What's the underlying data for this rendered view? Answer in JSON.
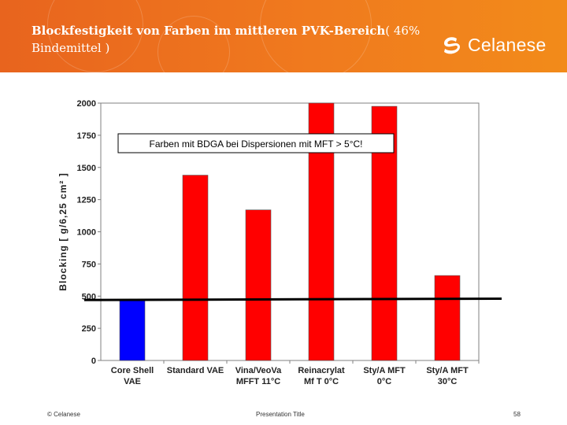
{
  "slide": {
    "title_bold": "Blockfestigkeit von Farben im mittleren PVK-Bereich",
    "title_rest": "( 46% Bindemittel )",
    "logo": "Celanese",
    "footer_left": "© Celanese",
    "footer_center": "Presentation Title",
    "page_number": "58"
  },
  "colors": {
    "header": "#f07a1e",
    "bar_highlight": "#0000ff",
    "bar_default": "#ff0000",
    "reference_line": "#000000"
  },
  "chart_data": {
    "type": "bar",
    "categories": [
      [
        "Core Shell",
        "VAE"
      ],
      [
        "Standard VAE"
      ],
      [
        "Vina/VeoVa",
        "MFFT 11°C"
      ],
      [
        "Reinacrylat",
        "Mf T 0°C"
      ],
      [
        "Sty/A MFT",
        "0°C"
      ],
      [
        "Sty/A MFT",
        "30°C"
      ]
    ],
    "values": [
      470,
      1440,
      1170,
      2000,
      1975,
      660
    ],
    "bar_colors": [
      "#0000ff",
      "#ff0000",
      "#ff0000",
      "#ff0000",
      "#ff0000",
      "#ff0000"
    ],
    "ylabel": "Blocking [ g/6,25 cm² ]",
    "ylim": [
      0,
      2000
    ],
    "yticks": [
      0,
      250,
      500,
      750,
      1000,
      1250,
      1500,
      1750,
      2000
    ],
    "grid": false,
    "annotation": "Farben mit BDGA bei Dispersionen mit MFT > 5°C!",
    "reference_line": {
      "y_start": 470,
      "y_end": 480
    }
  }
}
